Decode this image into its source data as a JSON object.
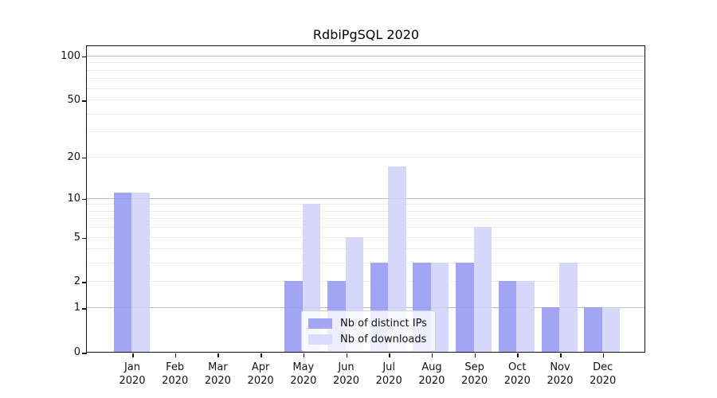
{
  "figure": {
    "background": "#ffffff"
  },
  "chart_data": {
    "type": "bar",
    "title": "RdbiPgSQL 2020",
    "categories": [
      "Jan 2020",
      "Feb 2020",
      "Mar 2020",
      "Apr 2020",
      "May 2020",
      "Jun 2020",
      "Jul 2020",
      "Aug 2020",
      "Sep 2020",
      "Oct 2020",
      "Nov 2020",
      "Dec 2020"
    ],
    "series": [
      {
        "name": "Nb of distinct IPs",
        "values": [
          11,
          0,
          0,
          0,
          2,
          2,
          3,
          3,
          3,
          2,
          1,
          1
        ],
        "color": "#a4a6f4",
        "fill": "rgba(146,149,243,0.85)"
      },
      {
        "name": "Nb of downloads",
        "values": [
          11,
          0,
          0,
          0,
          9,
          5,
          17,
          3,
          6,
          2,
          3,
          1
        ],
        "color": "#dadcf9",
        "fill": "rgba(207,209,248,0.85)"
      }
    ],
    "xlabel": "",
    "ylabel": "",
    "yscale": "log1p",
    "ylim": [
      0,
      115
    ],
    "yticks": [
      0,
      1,
      2,
      5,
      10,
      20,
      50,
      100
    ],
    "ygrid_major": [
      1,
      10,
      100
    ],
    "ygrid_minor": [
      2,
      3,
      4,
      5,
      6,
      7,
      8,
      9,
      20,
      30,
      40,
      50,
      60,
      70,
      80,
      90
    ],
    "grid": true,
    "legend_position": "lower center",
    "colors": {
      "grid_major": "#bbbbbb",
      "grid_minor": "#ededed",
      "spine": "#131313"
    }
  }
}
